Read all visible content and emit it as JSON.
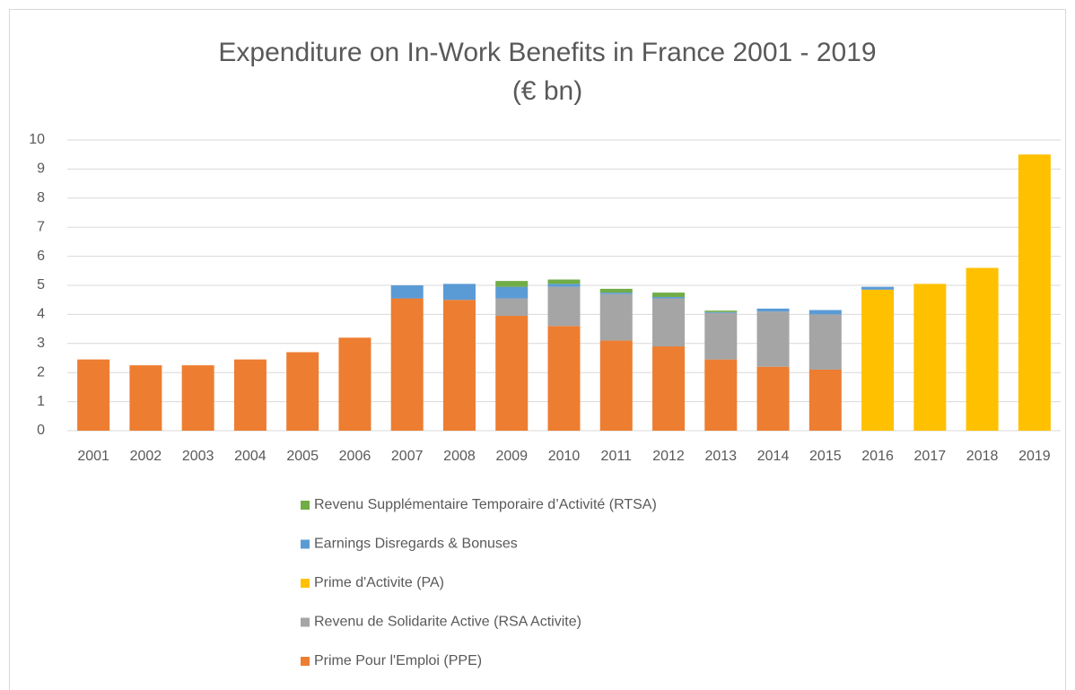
{
  "chart_data": {
    "type": "stacked_bar",
    "title": "Expenditure on In-Work Benefits in France 2001 - 2019",
    "subtitle": "(€ bn)",
    "categories": [
      "2001",
      "2002",
      "2003",
      "2004",
      "2005",
      "2006",
      "2007",
      "2008",
      "2009",
      "2010",
      "2011",
      "2012",
      "2013",
      "2014",
      "2015",
      "2016",
      "2017",
      "2018",
      "2019"
    ],
    "series": [
      {
        "name": "Prime Pour l'Emploi (PPE)",
        "color": "#ed7d31",
        "values": [
          2.45,
          2.25,
          2.25,
          2.45,
          2.7,
          3.2,
          4.55,
          4.5,
          3.95,
          3.6,
          3.1,
          2.9,
          2.45,
          2.2,
          2.1,
          0,
          0,
          0,
          0
        ]
      },
      {
        "name": "Revenu de Solidarite Active (RSA Activite)",
        "color": "#a5a5a5",
        "values": [
          0,
          0,
          0,
          0,
          0,
          0,
          0,
          0,
          0.6,
          1.35,
          1.6,
          1.65,
          1.6,
          1.9,
          1.9,
          0,
          0,
          0,
          0
        ]
      },
      {
        "name": "Prime d'Activite (PA)",
        "color": "#ffc000",
        "values": [
          0,
          0,
          0,
          0,
          0,
          0,
          0,
          0,
          0,
          0,
          0,
          0,
          0,
          0,
          0,
          4.85,
          5.05,
          5.6,
          9.5
        ]
      },
      {
        "name": "Earnings Disregards & Bonuses",
        "color": "#5b9bd5",
        "values": [
          0,
          0,
          0,
          0,
          0,
          0,
          0.45,
          0.55,
          0.4,
          0.1,
          0.05,
          0.05,
          0.03,
          0.1,
          0.15,
          0.1,
          0,
          0,
          0
        ]
      },
      {
        "name": "Revenu Supplémentaire Temporaire d’Activité (RTSA)",
        "color": "#70ad47",
        "values": [
          0,
          0,
          0,
          0,
          0,
          0,
          0,
          0,
          0.2,
          0.15,
          0.13,
          0.15,
          0.05,
          0,
          0,
          0,
          0,
          0,
          0
        ]
      }
    ],
    "ylim": [
      0,
      10
    ],
    "yticks": [
      0,
      1,
      2,
      3,
      4,
      5,
      6,
      7,
      8,
      9,
      10
    ],
    "grid": true,
    "legend": "bottom"
  }
}
